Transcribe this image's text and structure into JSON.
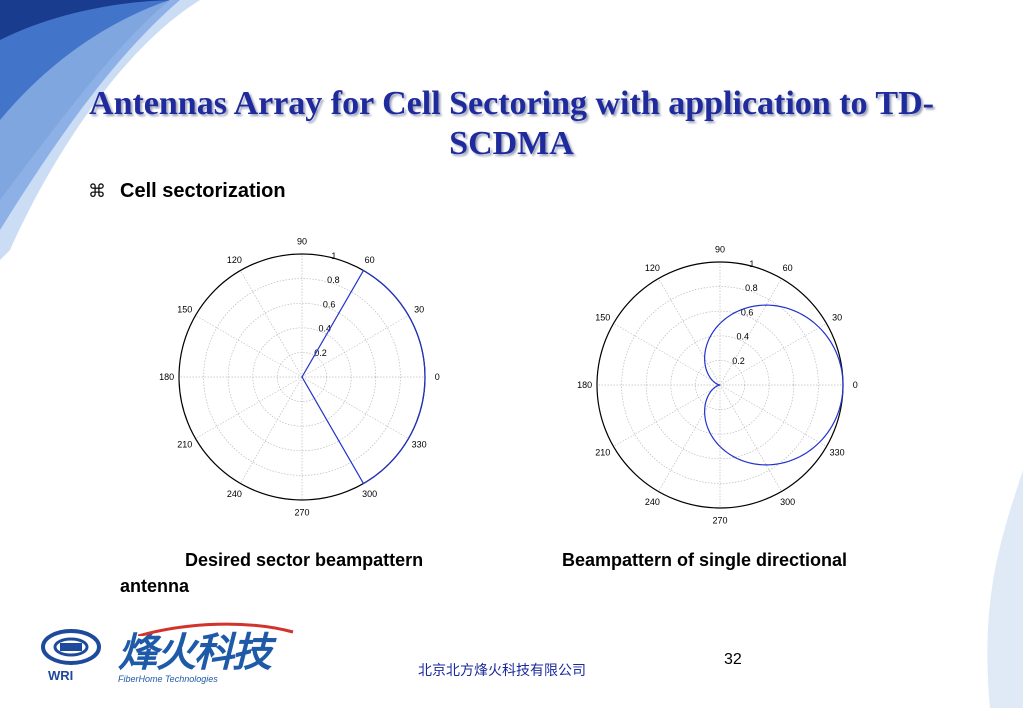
{
  "slide": {
    "title": "Antennas Array for Cell Sectoring with application to TD-SCDMA",
    "bullet": {
      "icon": "command-icon",
      "symbol": "⌘",
      "text": "Cell sectorization"
    },
    "caption_left": "Desired sector beampattern",
    "caption_right": "Beampattern of single directional",
    "caption_wrap": "antenna",
    "footer": {
      "company": "北京北方烽火科技有限公司",
      "page_number": "32",
      "logo_wri": "WRI",
      "logo_fiberhome_cn": "烽火科技",
      "logo_fiberhome_en": "FiberHome Technologies"
    }
  },
  "chart_data": [
    {
      "type": "polar",
      "name": "desired-sector",
      "angle_labels": [
        "0",
        "30",
        "60",
        "90",
        "120",
        "150",
        "180",
        "210",
        "240",
        "270",
        "300",
        "330"
      ],
      "radial_labels": [
        "0.2",
        "0.4",
        "0.6",
        "0.8",
        "1"
      ],
      "rlim": [
        0,
        1
      ],
      "grid": true,
      "pattern": {
        "kind": "sector",
        "from_deg": -60,
        "to_deg": 60,
        "gain": 1
      },
      "line_color": "#2233cc"
    },
    {
      "type": "polar",
      "name": "single-directional",
      "angle_labels": [
        "0",
        "30",
        "60",
        "90",
        "120",
        "150",
        "180",
        "210",
        "240",
        "270",
        "300",
        "330"
      ],
      "radial_labels": [
        "0.2",
        "0.4",
        "0.6",
        "0.8",
        "1"
      ],
      "rlim": [
        0,
        1
      ],
      "grid": true,
      "pattern": {
        "kind": "cardioid",
        "formula": "r = (1 + cos(theta)) / 2"
      },
      "line_color": "#2233cc"
    }
  ]
}
